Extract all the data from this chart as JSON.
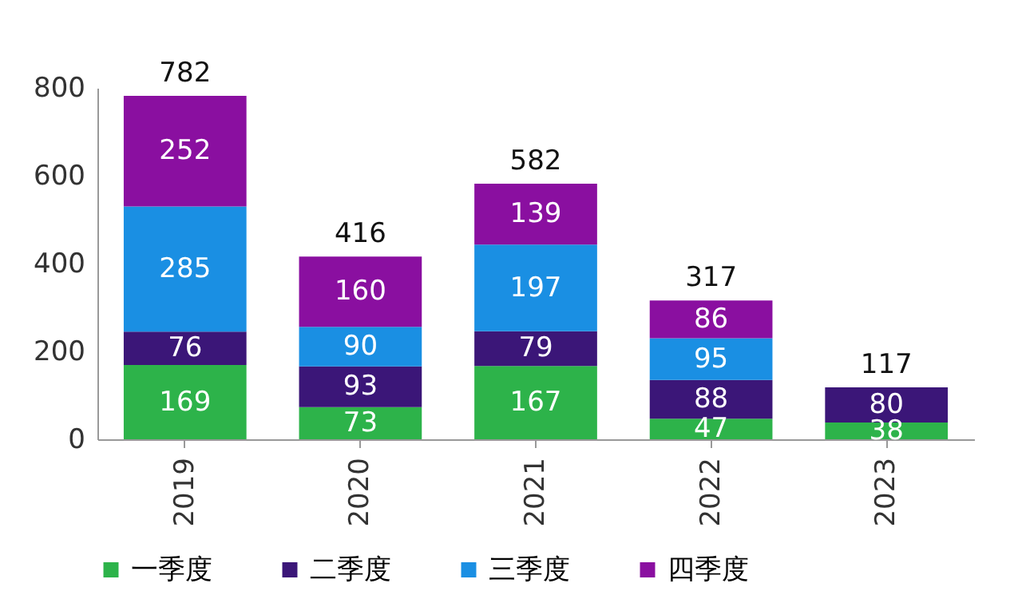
{
  "chart_data": {
    "type": "bar",
    "stacked": true,
    "categories": [
      "2019",
      "2020",
      "2021",
      "2022",
      "2023"
    ],
    "series": [
      {
        "name": "一季度",
        "color": "#2db34a",
        "values": [
          169,
          73,
          167,
          47,
          38
        ]
      },
      {
        "name": "二季度",
        "color": "#3b1678",
        "values": [
          76,
          93,
          79,
          88,
          80
        ]
      },
      {
        "name": "三季度",
        "color": "#1a8fe3",
        "values": [
          285,
          90,
          197,
          95,
          null
        ]
      },
      {
        "name": "四季度",
        "color": "#8a0fa0",
        "values": [
          252,
          160,
          139,
          86,
          null
        ]
      }
    ],
    "totals": [
      "782",
      "416",
      "582",
      "317",
      "117"
    ],
    "ylim": [
      0,
      800
    ],
    "yticks": [
      0,
      200,
      400,
      600,
      800
    ],
    "data_labels": true,
    "grid": false,
    "legend": "bottom"
  }
}
